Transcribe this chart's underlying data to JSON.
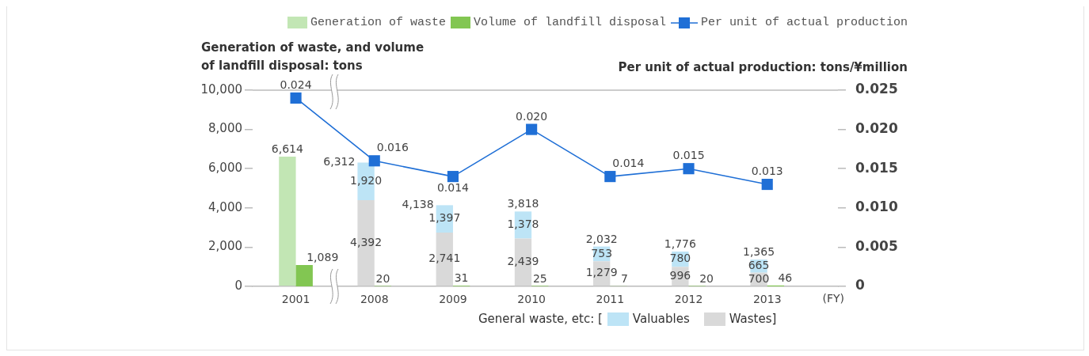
{
  "chart_data": [
    {
      "type": "bar",
      "stacked": true,
      "categories": [
        "2001",
        "2008",
        "2009",
        "2010",
        "2011",
        "2012",
        "2013"
      ],
      "xlabel": "(FY)",
      "ylabel": "Generation of waste, and volume of landfill disposal: tons",
      "y2label": "Per unit of actual production: tons/¥million",
      "legend_title": "General waste, etc: [",
      "series": [
        {
          "name": "Generation of waste",
          "color": "#c2e6b4",
          "values": [
            6614,
            null,
            null,
            null,
            null,
            null,
            null
          ],
          "value_labels": [
            "6,614",
            null,
            null,
            null,
            null,
            null,
            null
          ]
        },
        {
          "name": "Wastes]",
          "color": "#d9d9d9",
          "values": [
            null,
            4392,
            2741,
            2439,
            1279,
            996,
            700
          ],
          "value_labels": [
            null,
            "4,392",
            "2,741",
            "2,439",
            "1,279",
            "996",
            "700"
          ]
        },
        {
          "name": "Valuables",
          "color": "#bde4f6",
          "values": [
            null,
            1920,
            1397,
            1378,
            753,
            780,
            665
          ],
          "value_labels": [
            null,
            "1,920",
            "1,397",
            "1,378",
            "753",
            "780",
            "665"
          ]
        },
        {
          "name": "Per unit of actual production",
          "type": "line",
          "axis": "y2",
          "color": "#1f6fd6",
          "values": [
            0.024,
            0.016,
            0.014,
            0.02,
            0.014,
            0.015,
            0.013
          ],
          "value_labels": [
            "0.024",
            "0.016",
            "0.014",
            "0.020",
            "0.014",
            "0.015",
            "0.013"
          ]
        }
      ],
      "annotations": [
        {
          "text": "6,312",
          "x": "2008",
          "y": 6312
        },
        {
          "text": "4,138",
          "x": "2009",
          "y": 4138
        },
        {
          "text": "3,818",
          "x": "2010",
          "y": 3818
        },
        {
          "text": "2,032",
          "x": "2011",
          "y": 2032
        },
        {
          "text": "1,776",
          "x": "2012",
          "y": 1776
        },
        {
          "text": "1,365",
          "x": "2013",
          "y": 1365
        }
      ],
      "ylim": [
        0,
        10000
      ],
      "yticks": [
        0,
        {
          "value": 2000,
          "label": "2,000"
        },
        {
          "value": 4000,
          "label": "4,000"
        },
        {
          "value": 6000,
          "label": "6,000"
        },
        {
          "value": 8000,
          "label": "8,000"
        },
        {
          "value": 10000,
          "label": "10,000"
        }
      ],
      "y2lim": [
        0,
        0.025
      ],
      "y2ticks": [
        0,
        0.005,
        {
          "value": 0.01,
          "label": "0.010"
        },
        0.015,
        {
          "value": 0.02,
          "label": "0.020"
        },
        0.025
      ],
      "marker": "square",
      "legend": "top right"
    },
    {
      "type": "bar",
      "categories": [
        "2001",
        "2008",
        "2009",
        "2010",
        "2011",
        "2012",
        "2013"
      ],
      "series": [
        {
          "name": "Volume of landfill disposal",
          "color": "#82c652",
          "values": [
            1089,
            20,
            31,
            25,
            7,
            20,
            46
          ],
          "value_labels": [
            "1,089",
            "20",
            "31",
            "25",
            "7",
            "20",
            "46"
          ]
        }
      ],
      "ylim": [
        0,
        10000
      ],
      "tick_labels": false,
      "legend": "top right"
    }
  ]
}
